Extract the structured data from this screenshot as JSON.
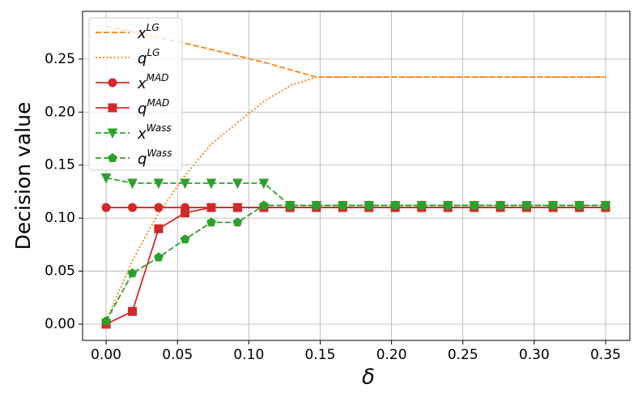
{
  "chart_data": {
    "type": "line",
    "xlabel": "δ",
    "ylabel": "Decision value",
    "x": [
      0,
      0.0184,
      0.0368,
      0.0553,
      0.0737,
      0.0921,
      0.1105,
      0.1289,
      0.1474,
      0.1658,
      0.1842,
      0.2026,
      0.2211,
      0.2395,
      0.2579,
      0.2763,
      0.2947,
      0.3132,
      0.3316,
      0.35
    ],
    "series": [
      {
        "name": "x",
        "name_sup": "LG",
        "color": "#ff7f0e",
        "dash": "dashed",
        "marker": "none",
        "values": [
          0.281,
          0.276,
          0.27,
          0.265,
          0.259,
          0.253,
          0.247,
          0.24,
          0.233,
          0.233,
          0.233,
          0.233,
          0.233,
          0.233,
          0.233,
          0.233,
          0.233,
          0.233,
          0.233,
          0.233
        ]
      },
      {
        "name": "q",
        "name_sup": "LG",
        "color": "#ff7f0e",
        "dash": "dotted",
        "marker": "none",
        "values": [
          0.003,
          0.06,
          0.105,
          0.14,
          0.17,
          0.19,
          0.21,
          0.225,
          0.233,
          0.233,
          0.233,
          0.233,
          0.233,
          0.233,
          0.233,
          0.233,
          0.233,
          0.233,
          0.233,
          0.233
        ]
      },
      {
        "name": "x",
        "name_sup": "MAD",
        "color": "#d62728",
        "dash": "solid",
        "marker": "circle",
        "values": [
          0.11,
          0.11,
          0.11,
          0.11,
          0.11,
          0.11,
          0.11,
          0.11,
          0.11,
          0.11,
          0.11,
          0.11,
          0.11,
          0.11,
          0.11,
          0.11,
          0.11,
          0.11,
          0.11,
          0.11
        ]
      },
      {
        "name": "q",
        "name_sup": "MAD",
        "color": "#d62728",
        "dash": "solid",
        "marker": "square",
        "values": [
          0.0,
          0.012,
          0.09,
          0.105,
          0.11,
          0.11,
          0.11,
          0.11,
          0.11,
          0.11,
          0.11,
          0.11,
          0.11,
          0.11,
          0.11,
          0.11,
          0.11,
          0.11,
          0.11,
          0.11
        ]
      },
      {
        "name": "x",
        "name_sup": "Wass",
        "color": "#2ca02c",
        "dash": "dashed",
        "marker": "triangle-down",
        "values": [
          0.138,
          0.133,
          0.133,
          0.133,
          0.133,
          0.133,
          0.133,
          0.112,
          0.112,
          0.112,
          0.112,
          0.112,
          0.112,
          0.112,
          0.112,
          0.112,
          0.112,
          0.112,
          0.112,
          0.112
        ]
      },
      {
        "name": "q",
        "name_sup": "Wass",
        "color": "#2ca02c",
        "dash": "dashed",
        "marker": "pentagon",
        "values": [
          0.003,
          0.048,
          0.063,
          0.08,
          0.096,
          0.096,
          0.112,
          0.112,
          0.112,
          0.112,
          0.112,
          0.112,
          0.112,
          0.112,
          0.112,
          0.112,
          0.112,
          0.112,
          0.112,
          0.112
        ]
      }
    ],
    "xlim": [
      -0.0165,
      0.367
    ],
    "ylim": [
      -0.0153,
      0.295
    ],
    "xticks": [
      {
        "value": 0,
        "label": "0.00"
      },
      {
        "value": 0.05,
        "label": "0.05"
      },
      {
        "value": 0.1,
        "label": "0.10"
      },
      {
        "value": 0.15,
        "label": "0.15"
      },
      {
        "value": 0.2,
        "label": "0.20"
      },
      {
        "value": 0.25,
        "label": "0.25"
      },
      {
        "value": 0.3,
        "label": "0.30"
      },
      {
        "value": 0.35,
        "label": "0.35"
      }
    ],
    "yticks": [
      {
        "value": 0,
        "label": "0.00"
      },
      {
        "value": 0.05,
        "label": "0.05"
      },
      {
        "value": 0.1,
        "label": "0.10"
      },
      {
        "value": 0.15,
        "label": "0.15"
      },
      {
        "value": 0.2,
        "label": "0.20"
      },
      {
        "value": 0.25,
        "label": "0.25"
      }
    ],
    "grid": true,
    "legend": "upper left"
  }
}
